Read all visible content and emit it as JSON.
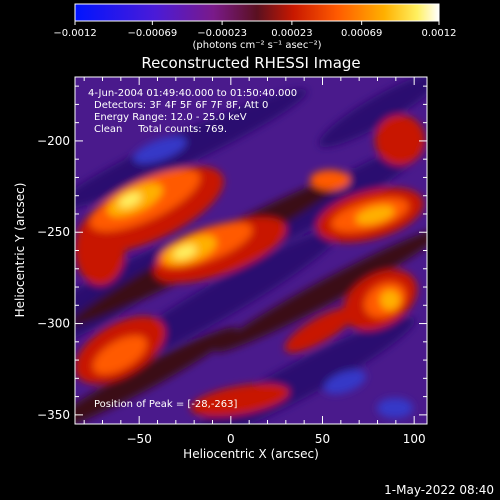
{
  "chart_data": {
    "type": "heatmap",
    "title": "Reconstructed RHESSI Image",
    "xlabel": "Heliocentric X (arcsec)",
    "ylabel": "Heliocentric Y (arcsec)",
    "xlim": [
      -85,
      107
    ],
    "ylim": [
      -355,
      -165
    ],
    "x_ticks": [
      -50,
      0,
      50,
      100
    ],
    "x_tick_labels": [
      "−50",
      "0",
      "50",
      "100"
    ],
    "y_ticks": [
      -200,
      -250,
      -300,
      -350
    ],
    "y_tick_labels": [
      "−200",
      "−250",
      "−300",
      "−350"
    ],
    "colorbar": {
      "min": -0.0012,
      "max": 0.0012,
      "ticks": [
        -0.0012,
        -0.00069,
        -0.00023,
        0.00023,
        0.00069,
        0.0012
      ],
      "tick_labels": [
        "−0.0012",
        "−0.00069",
        "−0.00023",
        "0.00023",
        "0.00069",
        "0.0012"
      ],
      "unit_label": "(photons cm⁻² s⁻¹ asec⁻²)",
      "colormap": "blue-purple-red-orange-yellow-white"
    },
    "annotations": [
      "4-Jun-2004 01:49:40.000 to 01:50:40.000",
      "Detectors: 3F 4F 5F 6F 7F 8F, Att 0",
      "Energy Range: 12.0 - 25.0 keV",
      "Clean     Total counts: 769."
    ],
    "peak_label": "Position of Peak = [-28,-263]",
    "peak": [
      -28,
      -263
    ],
    "footer": "1-May-2022 08:40"
  }
}
